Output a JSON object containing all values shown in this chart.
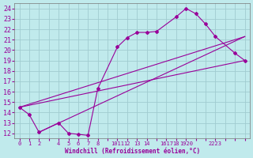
{
  "xlabel": "Windchill (Refroidissement éolien,°C)",
  "bg_color": "#c0eaec",
  "grid_color": "#a0ccd0",
  "line_color": "#990099",
  "xlim": [
    -0.5,
    23.5
  ],
  "ylim": [
    11.5,
    24.5
  ],
  "x_ticks_all": [
    0,
    1,
    2,
    3,
    4,
    5,
    6,
    7,
    8,
    9,
    10,
    11,
    12,
    13,
    14,
    15,
    16,
    17,
    18,
    19,
    20,
    21,
    22,
    23
  ],
  "x_tick_labels": [
    "0",
    "1",
    "2",
    "",
    "4",
    "5",
    "6",
    "7",
    "8",
    "",
    "1011",
    "12",
    "13",
    "14",
    "",
    "1617",
    "18",
    "1920",
    "",
    "",
    "2223",
    "",
    "",
    ""
  ],
  "y_ticks": [
    12,
    13,
    14,
    15,
    16,
    17,
    18,
    19,
    20,
    21,
    22,
    23,
    24
  ],
  "curve1_x": [
    0,
    1,
    2,
    4,
    5,
    6,
    7,
    8,
    10,
    11,
    12,
    13,
    14,
    16,
    17,
    18,
    19,
    20,
    22,
    23
  ],
  "curve1_y": [
    14.5,
    13.8,
    12.1,
    13.0,
    12.0,
    11.9,
    11.8,
    16.3,
    20.3,
    21.2,
    21.7,
    21.7,
    21.8,
    23.2,
    24.0,
    23.5,
    22.5,
    21.3,
    19.7,
    19.0
  ],
  "line1_x": [
    0,
    23
  ],
  "line1_y": [
    14.5,
    19.0
  ],
  "line2_x": [
    0,
    23
  ],
  "line2_y": [
    14.5,
    21.3
  ],
  "line3_x": [
    2,
    23
  ],
  "line3_y": [
    12.1,
    21.3
  ]
}
